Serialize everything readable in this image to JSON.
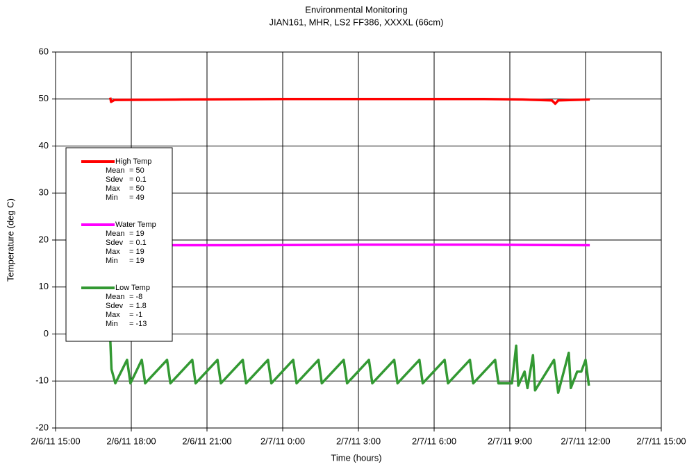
{
  "chart_data": {
    "type": "line",
    "title": "Environmental Monitoring",
    "subtitle": "JIAN161, MHR, LS2 FF386, XXXXL (66cm)",
    "x_label": "Time (hours)",
    "y_label": "Temperature (deg C)",
    "xlim": [
      "2011-02-06T15:00",
      "2011-02-07T15:00"
    ],
    "xticks": [
      {
        "value": "2011-02-06T15:00",
        "label": "2/6/11 15:00"
      },
      {
        "value": "2011-02-06T18:00",
        "label": "2/6/11 18:00"
      },
      {
        "value": "2011-02-06T21:00",
        "label": "2/6/11 21:00"
      },
      {
        "value": "2011-02-07T00:00",
        "label": "2/7/11 0:00"
      },
      {
        "value": "2011-02-07T03:00",
        "label": "2/7/11 3:00"
      },
      {
        "value": "2011-02-07T06:00",
        "label": "2/7/11 6:00"
      },
      {
        "value": "2011-02-07T09:00",
        "label": "2/7/11 9:00"
      },
      {
        "value": "2011-02-07T12:00",
        "label": "2/7/11 12:00"
      },
      {
        "value": "2011-02-07T15:00",
        "label": "2/7/11 15:00"
      }
    ],
    "ylim": [
      -20,
      60
    ],
    "yticks": [
      -20,
      -10,
      0,
      10,
      20,
      30,
      40,
      50,
      60
    ],
    "grid": true,
    "legend": "upper-left",
    "series": [
      {
        "name": "High Temp",
        "color": "#ff0000",
        "stats": [
          {
            "label": "Mean",
            "value": "= 50"
          },
          {
            "label": "Sdev",
            "value": "= 0.1"
          },
          {
            "label": "Max",
            "value": "= 50"
          },
          {
            "label": "Min",
            "value": "= 49"
          }
        ],
        "x": [
          "2011-02-06T17:10",
          "2011-02-06T17:12",
          "2011-02-06T17:20",
          "2011-02-06T20:00",
          "2011-02-07T00:00",
          "2011-02-07T04:00",
          "2011-02-07T08:00",
          "2011-02-07T09:30",
          "2011-02-07T10:40",
          "2011-02-07T10:48",
          "2011-02-07T10:55",
          "2011-02-07T12:10"
        ],
        "values": [
          50.3,
          49.4,
          49.8,
          49.9,
          50,
          50,
          50,
          49.9,
          49.7,
          49,
          49.7,
          49.9
        ]
      },
      {
        "name": "Water Temp",
        "color": "#ff00ff",
        "stats": [
          {
            "label": "Mean",
            "value": "= 19"
          },
          {
            "label": "Sdev",
            "value": "= 0.1"
          },
          {
            "label": "Max",
            "value": "= 19"
          },
          {
            "label": "Min",
            "value": "= 19"
          }
        ],
        "x": [
          "2011-02-06T17:10",
          "2011-02-06T22:00",
          "2011-02-07T03:00",
          "2011-02-07T08:00",
          "2011-02-07T12:10"
        ],
        "values": [
          18.9,
          18.9,
          19,
          19,
          18.9
        ]
      },
      {
        "name": "Low Temp",
        "color": "#339933",
        "stats": [
          {
            "label": "Mean",
            "value": "= -8"
          },
          {
            "label": "Sdev",
            "value": "= 1.8"
          },
          {
            "label": "Max",
            "value": "= -1"
          },
          {
            "label": "Min",
            "value": "= -13"
          }
        ],
        "x": [
          "2011-02-06T17:10",
          "2011-02-06T17:13",
          "2011-02-06T17:22",
          "2011-02-06T17:50",
          "2011-02-06T17:58",
          "2011-02-06T18:25",
          "2011-02-06T18:33",
          "2011-02-06T19:25",
          "2011-02-06T19:33",
          "2011-02-06T20:25",
          "2011-02-06T20:33",
          "2011-02-06T21:25",
          "2011-02-06T21:33",
          "2011-02-06T22:25",
          "2011-02-06T22:33",
          "2011-02-06T23:25",
          "2011-02-06T23:33",
          "2011-02-07T00:25",
          "2011-02-07T00:33",
          "2011-02-07T01:25",
          "2011-02-07T01:33",
          "2011-02-07T02:25",
          "2011-02-07T02:33",
          "2011-02-07T03:25",
          "2011-02-07T03:33",
          "2011-02-07T04:25",
          "2011-02-07T04:33",
          "2011-02-07T05:25",
          "2011-02-07T05:33",
          "2011-02-07T06:25",
          "2011-02-07T06:33",
          "2011-02-07T07:25",
          "2011-02-07T07:33",
          "2011-02-07T08:25",
          "2011-02-07T08:33",
          "2011-02-07T09:05",
          "2011-02-07T09:15",
          "2011-02-07T09:20",
          "2011-02-07T09:35",
          "2011-02-07T09:42",
          "2011-02-07T09:55",
          "2011-02-07T10:00",
          "2011-02-07T10:45",
          "2011-02-07T10:55",
          "2011-02-07T11:20",
          "2011-02-07T11:25",
          "2011-02-07T11:40",
          "2011-02-07T11:50",
          "2011-02-07T12:00",
          "2011-02-07T12:08"
        ],
        "values": [
          -1,
          -7.5,
          -10.5,
          -5.5,
          -10.5,
          -5.5,
          -10.5,
          -5.5,
          -10.5,
          -5.5,
          -10.5,
          -5.5,
          -10.5,
          -5.5,
          -10.5,
          -5.5,
          -10.5,
          -5.5,
          -10.5,
          -5.5,
          -10.5,
          -5.5,
          -10.5,
          -5.5,
          -10.5,
          -5.5,
          -10.5,
          -5.5,
          -10.5,
          -5.5,
          -10.5,
          -5.5,
          -10.5,
          -5.5,
          -10.5,
          -10.5,
          -2.5,
          -11,
          -8,
          -11.5,
          -4.5,
          -12,
          -5.5,
          -12.5,
          -4,
          -11.5,
          -8,
          -8,
          -5.5,
          -11
        ]
      }
    ]
  }
}
